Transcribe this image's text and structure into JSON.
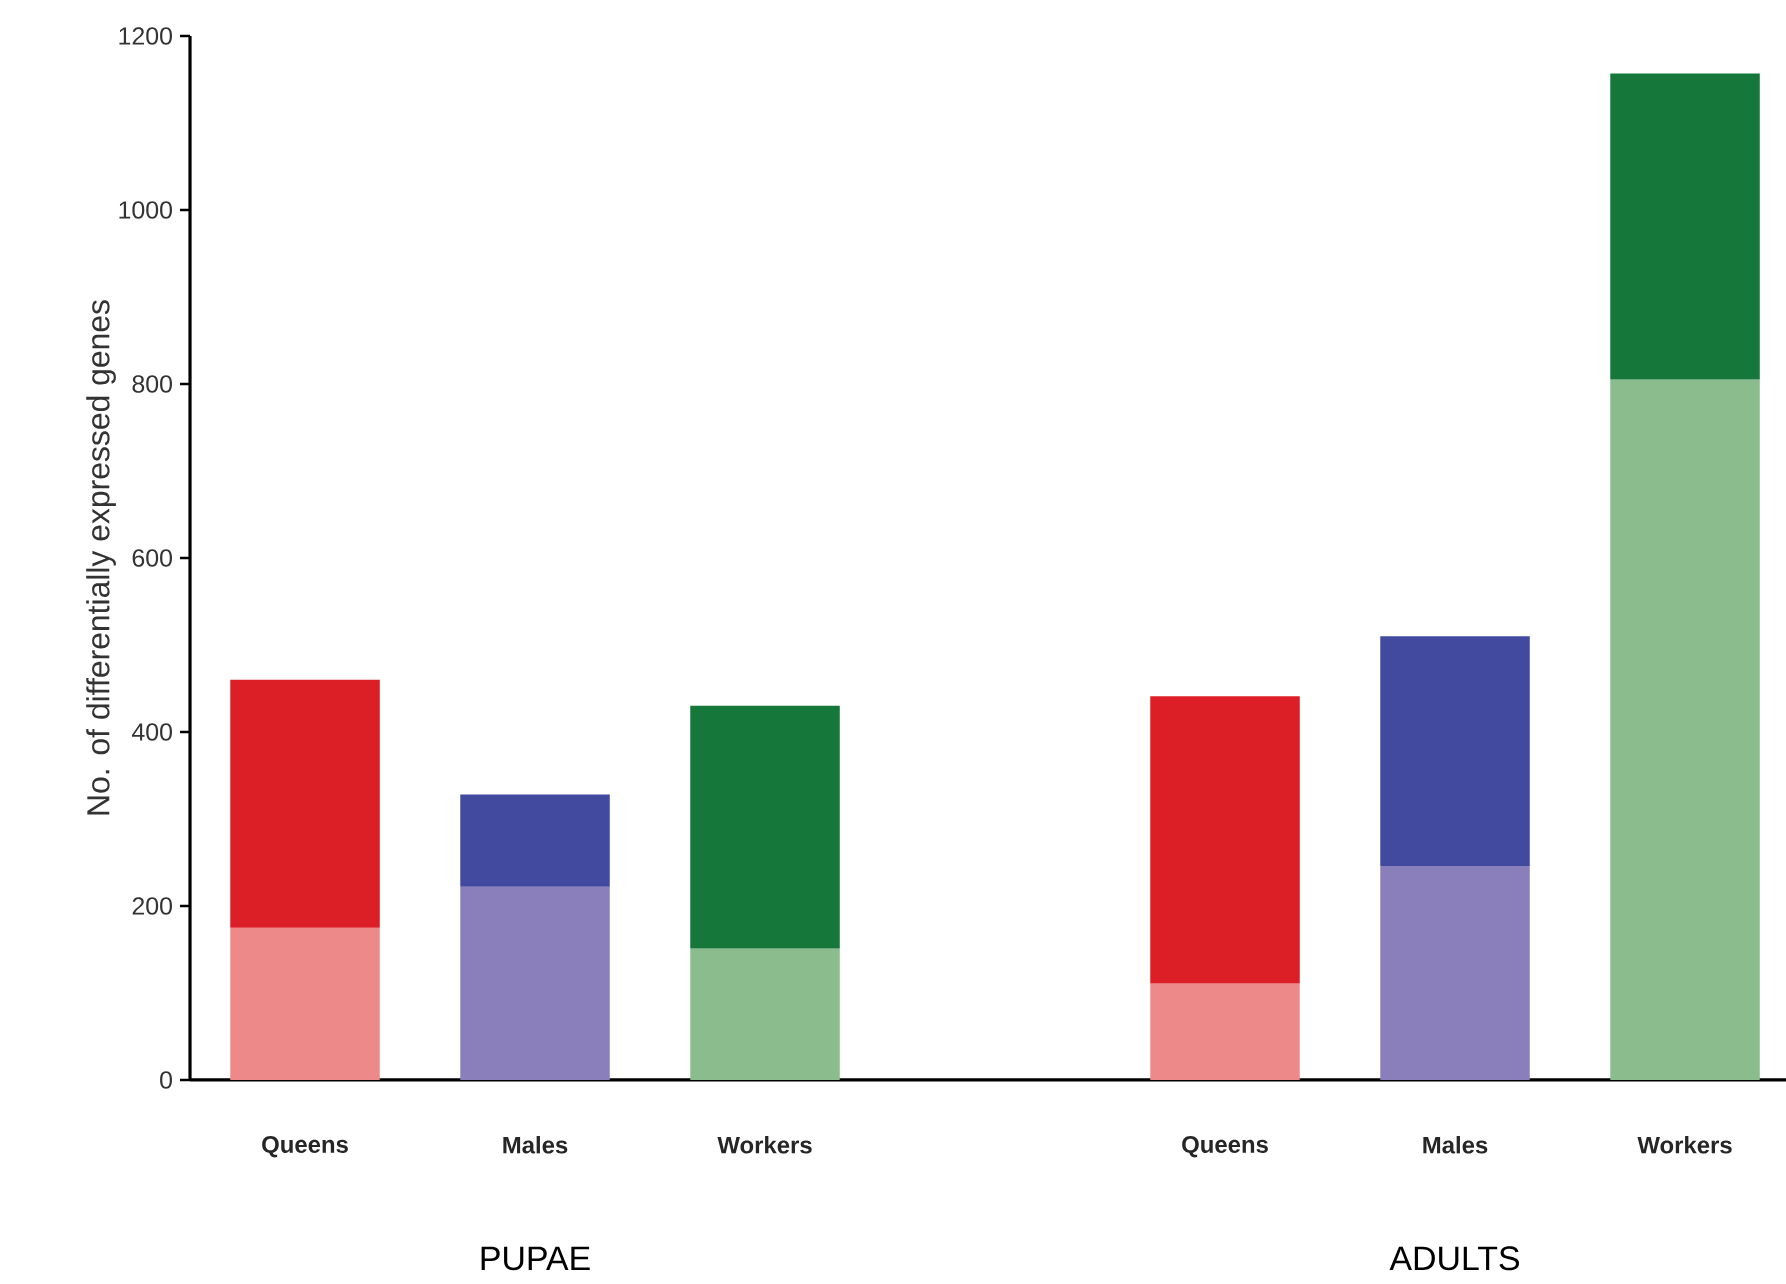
{
  "chart_data": {
    "type": "bar",
    "stacked": true,
    "ylabel": "No. of differentially expressed genes",
    "categories": [
      "Queens",
      "Males",
      "Workers",
      null,
      "Queens",
      "Males",
      "Workers"
    ],
    "series": [
      {
        "colors": [
          "#ed8a89",
          "#8b7fbb",
          "#8abc8e",
          null,
          "#ed8a89",
          "#8b7fbb",
          "#8abc8e"
        ],
        "values": [
          175,
          222,
          151,
          null,
          111,
          246,
          805
        ]
      },
      {
        "colors": [
          "#dc1f26",
          "#414a9e",
          "#16773b",
          null,
          "#dc1f26",
          "#414a9e",
          "#16773b"
        ],
        "values": [
          285,
          106,
          279,
          null,
          330,
          264,
          352
        ]
      }
    ],
    "ylim": [
      0,
      1200
    ],
    "yticks": [
      0,
      200,
      400,
      600,
      800,
      1000,
      1200
    ],
    "annotations": [
      "PUPAE",
      "ADULTS"
    ]
  }
}
